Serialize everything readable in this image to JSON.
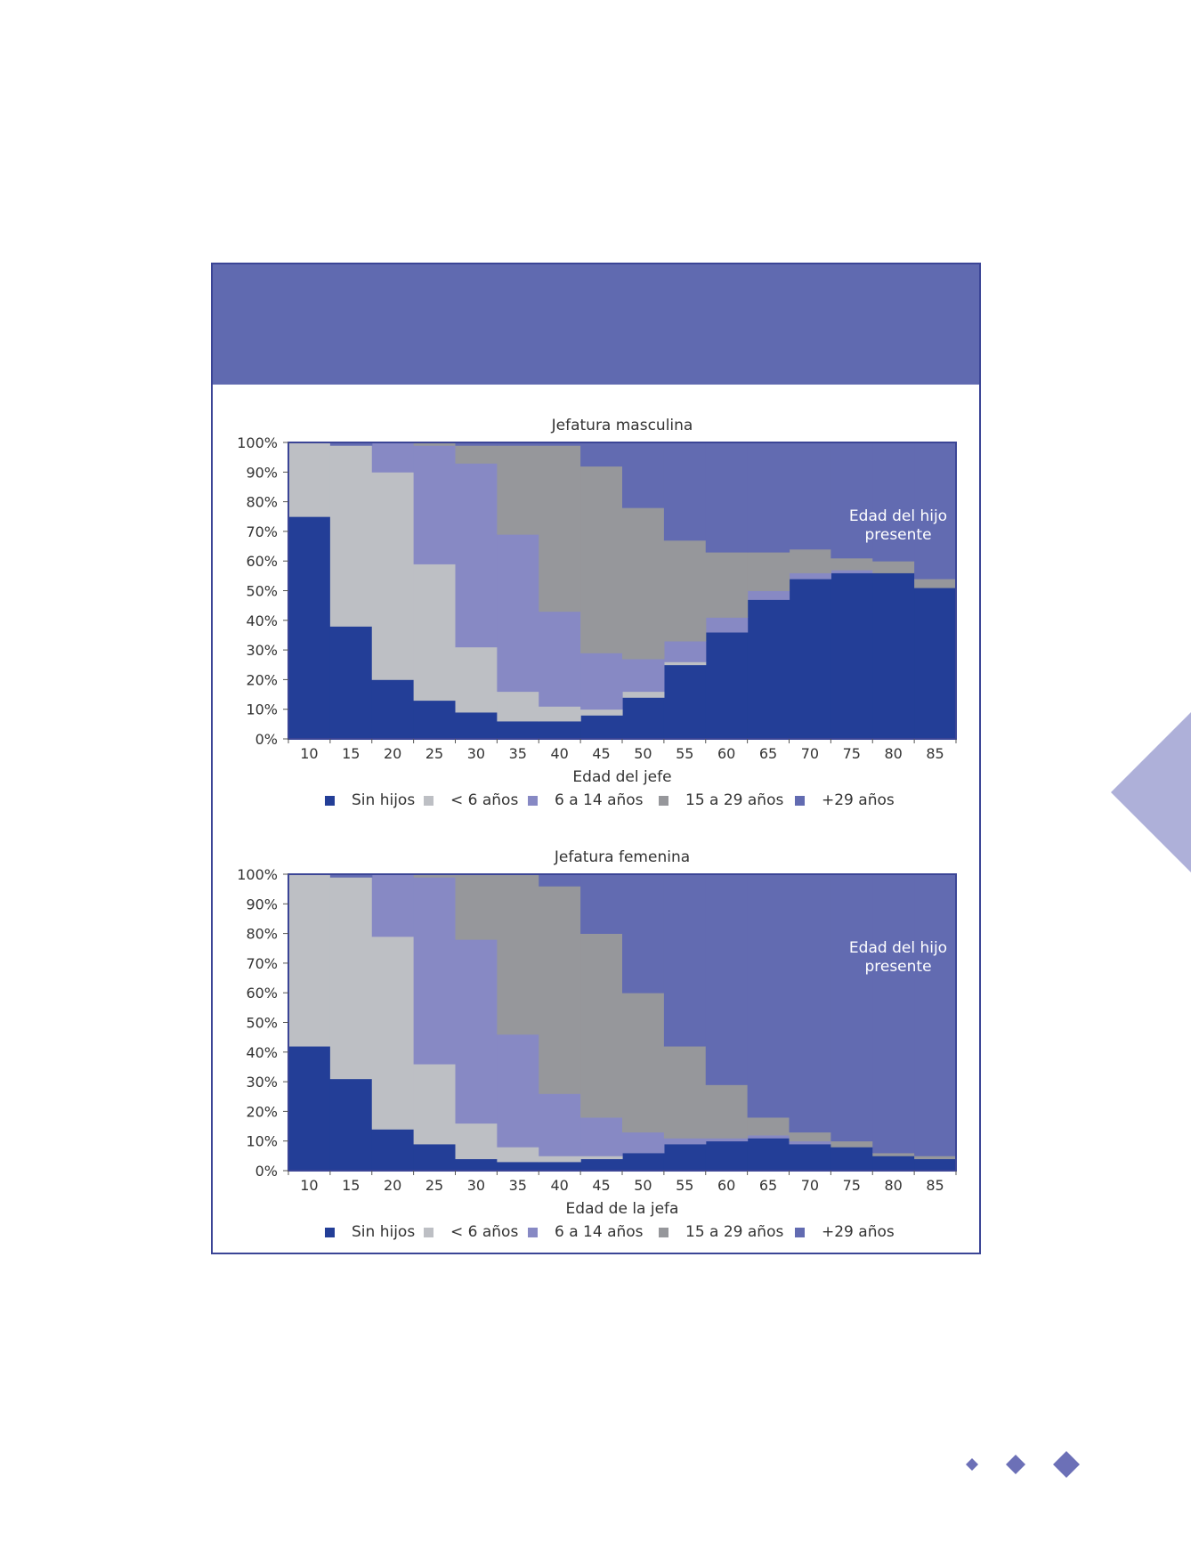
{
  "colors": {
    "frame": "#3b4596",
    "header_band": "#606ab0",
    "sin_hijos": "#233e97",
    "menor_6": "#bdbfc4",
    "6_14": "#8789c4",
    "15_29": "#96979b",
    "mas_29": "#626bb1",
    "decoration": "#6c70b7",
    "side_triangle": "#aeb0d9"
  },
  "decorations": {
    "side_triangle": "decorative-triangle",
    "diamonds": [
      "small-diamond",
      "medium-diamond",
      "large-diamond"
    ]
  },
  "chart_data": [
    {
      "type": "area",
      "stacked": "percent",
      "title": "Jefatura masculina",
      "xlabel": "Edad del jefe",
      "ylabel": "",
      "ylim": [
        0,
        100
      ],
      "ytick_labels": [
        "0%",
        "10%",
        "20%",
        "30%",
        "40%",
        "50%",
        "60%",
        "70%",
        "80%",
        "90%",
        "100%"
      ],
      "x": [
        "10",
        "15",
        "20",
        "25",
        "30",
        "35",
        "40",
        "45",
        "50",
        "55",
        "60",
        "65",
        "70",
        "75",
        "80",
        "85"
      ],
      "legend_position": "bottom",
      "annotation": [
        "Edad del hijo",
        "presente"
      ],
      "series": [
        {
          "name": "Sin hijos",
          "values": [
            75,
            38,
            20,
            13,
            9,
            6,
            6,
            8,
            14,
            25,
            36,
            47,
            54,
            56,
            56,
            51
          ]
        },
        {
          "name": "< 6 años",
          "values": [
            25,
            61,
            70,
            46,
            22,
            10,
            5,
            2,
            2,
            1,
            0,
            0,
            0,
            0,
            0,
            0
          ]
        },
        {
          "name": "6 a 14 años",
          "values": [
            0,
            0,
            10,
            40,
            62,
            53,
            32,
            19,
            11,
            7,
            5,
            3,
            2,
            1,
            0,
            0
          ]
        },
        {
          "name": "15 a 29 años",
          "values": [
            0,
            0,
            0,
            1,
            6,
            30,
            56,
            63,
            51,
            34,
            22,
            13,
            8,
            4,
            4,
            3
          ]
        },
        {
          "name": "+29 años",
          "values": [
            0,
            1,
            0,
            0,
            1,
            1,
            1,
            8,
            22,
            33,
            37,
            37,
            36,
            39,
            40,
            46
          ]
        }
      ]
    },
    {
      "type": "area",
      "stacked": "percent",
      "title": "Jefatura femenina",
      "xlabel": "Edad de la jefa",
      "ylabel": "",
      "ylim": [
        0,
        100
      ],
      "ytick_labels": [
        "0%",
        "10%",
        "20%",
        "30%",
        "40%",
        "50%",
        "60%",
        "70%",
        "80%",
        "90%",
        "100%"
      ],
      "x": [
        "10",
        "15",
        "20",
        "25",
        "30",
        "35",
        "40",
        "45",
        "50",
        "55",
        "60",
        "65",
        "70",
        "75",
        "80",
        "85"
      ],
      "legend_position": "bottom",
      "annotation": [
        "Edad del hijo",
        "presente"
      ],
      "series": [
        {
          "name": "Sin hijos",
          "values": [
            42,
            31,
            14,
            9,
            4,
            3,
            3,
            4,
            6,
            9,
            10,
            11,
            9,
            8,
            5,
            4
          ]
        },
        {
          "name": "< 6 años",
          "values": [
            58,
            68,
            65,
            27,
            12,
            5,
            2,
            1,
            0,
            0,
            0,
            0,
            0,
            0,
            0,
            0
          ]
        },
        {
          "name": "6 a 14 años",
          "values": [
            0,
            0,
            21,
            63,
            62,
            38,
            21,
            13,
            7,
            2,
            1,
            1,
            1,
            0,
            0,
            0
          ]
        },
        {
          "name": "15 a 29 años",
          "values": [
            0,
            0,
            0,
            1,
            22,
            54,
            70,
            62,
            47,
            31,
            18,
            6,
            3,
            2,
            1,
            1
          ]
        },
        {
          "name": "+29 años",
          "values": [
            0,
            1,
            0,
            0,
            0,
            0,
            4,
            20,
            40,
            58,
            71,
            82,
            87,
            90,
            94,
            95
          ]
        }
      ]
    }
  ]
}
